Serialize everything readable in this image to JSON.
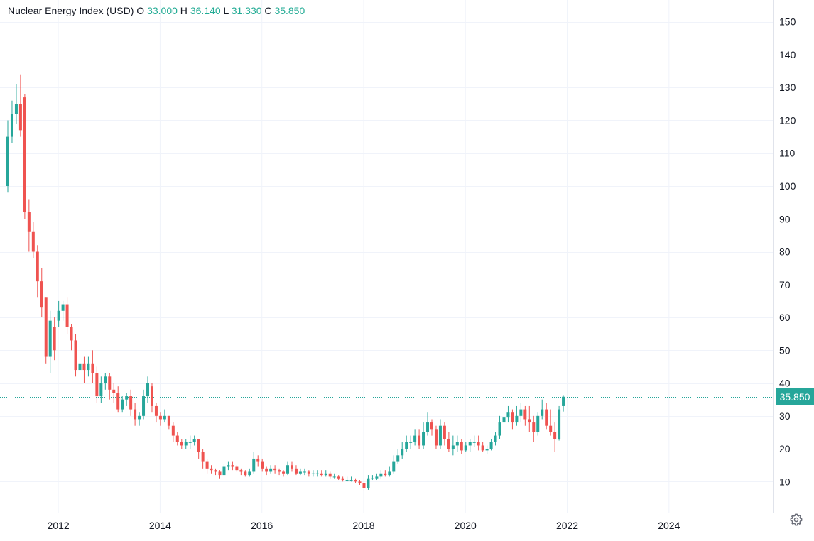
{
  "legend": {
    "title": "Nuclear Energy Index (USD)",
    "o_label": "O",
    "o_value": "33.000",
    "h_label": "H",
    "h_value": "36.140",
    "l_label": "L",
    "l_value": "31.330",
    "c_label": "C",
    "c_value": "35.850"
  },
  "last_price": "35.850",
  "colors": {
    "up": "#26a69a",
    "down": "#ef5350",
    "grid": "#f0f3fa",
    "axis_text": "#131722",
    "price_line": "#26a69a"
  },
  "settings_icon": "gear-icon",
  "chart_data": {
    "type": "candlestick",
    "interval": "monthly",
    "title": "Nuclear Energy Index (USD)",
    "y_ticks": [
      10,
      20,
      30,
      40,
      50,
      60,
      70,
      80,
      90,
      100,
      110,
      120,
      130,
      140,
      150
    ],
    "x_ticks": [
      "2012",
      "2014",
      "2016",
      "2018",
      "2020",
      "2022",
      "2024"
    ],
    "grid": true,
    "start": "2011-01",
    "close": [
      115,
      122,
      125,
      117,
      92,
      86,
      80,
      71,
      63,
      48,
      59,
      50,
      62,
      64,
      57,
      53,
      44,
      46,
      44,
      46,
      43,
      36,
      40,
      42,
      38,
      37,
      32,
      35,
      36,
      32,
      29,
      30,
      36,
      40,
      33,
      30,
      29,
      30,
      27,
      24,
      22,
      21,
      22,
      22,
      23,
      19,
      16,
      14,
      13.5,
      13,
      12,
      14.5,
      15,
      14.5,
      13.5,
      13,
      12,
      13,
      17,
      16,
      14,
      13,
      14,
      13.5,
      13,
      12.5,
      15,
      14,
      12.5,
      13,
      13,
      12.5,
      12.5,
      12.5,
      12,
      12.5,
      11.5,
      11.5,
      11,
      10.5,
      10.5,
      10.5,
      10,
      9.5,
      8,
      11,
      11,
      11.5,
      12.5,
      12,
      13,
      16,
      18,
      20,
      22,
      22,
      24,
      21,
      25,
      28,
      26,
      21,
      27,
      23,
      20,
      21,
      22,
      19.5,
      21,
      22,
      22,
      21,
      19.5,
      20,
      22,
      24,
      28,
      29.5,
      31,
      28,
      30,
      32,
      29,
      28,
      25,
      30,
      32,
      27,
      25,
      23,
      32,
      35.85
    ],
    "open": [
      100,
      115,
      122,
      125,
      127,
      92,
      86,
      80,
      71,
      66,
      48,
      57,
      59,
      62,
      64,
      57,
      53,
      44,
      46,
      44,
      46,
      43,
      36,
      40,
      42,
      38,
      37,
      32,
      35,
      36,
      32,
      29,
      30,
      36,
      39,
      33,
      30,
      29,
      30,
      27,
      24,
      22,
      21,
      22,
      22,
      23,
      19,
      16,
      14,
      13.5,
      13,
      12,
      14.5,
      15,
      14.5,
      13.5,
      13,
      12,
      13,
      17,
      16,
      14,
      13,
      14,
      13.5,
      13,
      12.5,
      15,
      14,
      12.5,
      13,
      13,
      12.5,
      12.5,
      12.5,
      12,
      12.5,
      11.5,
      11.5,
      11,
      10.5,
      10.5,
      10.5,
      10,
      9.5,
      8,
      11,
      11,
      11.5,
      12.5,
      12,
      13,
      16,
      18,
      20,
      22,
      22,
      24,
      21,
      25,
      28,
      26,
      21,
      27,
      23,
      20,
      21,
      22,
      19.5,
      21,
      22,
      22,
      21,
      19.5,
      20,
      22,
      24,
      28,
      29.5,
      31,
      28,
      30,
      32,
      29,
      28,
      25,
      30,
      32,
      27,
      25,
      23,
      33
    ],
    "high": [
      120,
      126,
      131,
      134,
      128,
      96,
      89,
      82,
      75,
      66,
      62,
      60,
      65,
      65,
      66,
      58,
      55,
      47,
      48,
      48,
      50,
      45,
      42,
      43,
      43,
      40,
      39,
      36,
      37,
      38,
      34,
      31,
      38,
      42,
      40,
      34,
      31,
      32,
      30,
      28,
      25,
      23,
      23,
      24,
      24,
      23,
      20,
      17,
      15,
      14,
      13.5,
      15.5,
      16,
      16,
      15,
      14,
      13.5,
      14,
      19,
      18,
      17,
      14.5,
      15,
      15,
      14,
      13.5,
      16,
      16,
      15,
      14,
      14,
      13.5,
      13.5,
      13.5,
      13.5,
      13.5,
      13,
      12.5,
      12,
      11.5,
      11.5,
      11.5,
      11,
      10.5,
      10,
      12,
      12,
      12.5,
      13.5,
      13.5,
      14.5,
      18,
      20,
      22,
      24,
      24,
      26,
      26,
      28,
      31,
      29,
      27,
      29,
      28,
      25,
      24,
      24,
      23,
      22,
      23,
      24,
      24,
      22,
      21,
      23,
      25,
      30,
      31,
      33,
      32,
      33,
      34,
      33,
      33,
      30,
      31,
      35,
      34,
      32,
      28,
      33,
      36.14
    ],
    "low": [
      98,
      113,
      119,
      115,
      90,
      80,
      78,
      66,
      60,
      46,
      43,
      47,
      57,
      59,
      55,
      50,
      42,
      41,
      40,
      42,
      40,
      34,
      34,
      38,
      35,
      34,
      31,
      31,
      33,
      30,
      27,
      27,
      29,
      34,
      31,
      28,
      27,
      28,
      26,
      22,
      21,
      20,
      20,
      20,
      21,
      17,
      14,
      12.5,
      12.5,
      12,
      11,
      12,
      13.5,
      13.5,
      13,
      12,
      11.5,
      11.5,
      12.5,
      14.5,
      13,
      12,
      12.5,
      12.5,
      12,
      11.5,
      12,
      13,
      12,
      12,
      12,
      11.5,
      11.5,
      11.5,
      11.5,
      11.5,
      11,
      11,
      10.5,
      10,
      10,
      10,
      9.5,
      9,
      7,
      7.5,
      10.5,
      10.5,
      11,
      11.5,
      11.5,
      12.5,
      15.5,
      17,
      19,
      20,
      21,
      20,
      20,
      24,
      24,
      20,
      20,
      21,
      19,
      18,
      19,
      18.5,
      19,
      19,
      20.5,
      19.5,
      19,
      18.5,
      19.5,
      21,
      23,
      26,
      28,
      26,
      27,
      28,
      27,
      25,
      22,
      24,
      29,
      26,
      24,
      19,
      22.5,
      31.33
    ]
  }
}
